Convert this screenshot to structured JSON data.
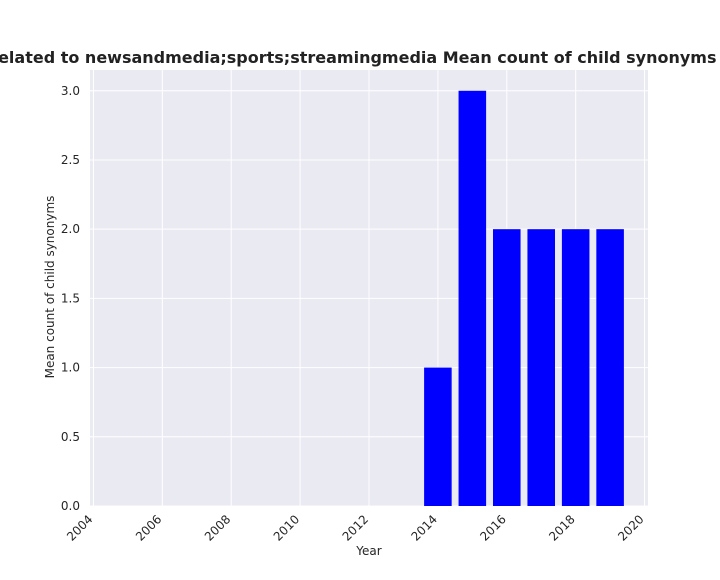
{
  "chart_data": {
    "type": "bar",
    "title": "s are related to newsandmedia;sports;streamingmedia Mean count of child synonyms in privac",
    "xlabel": "Year",
    "ylabel": "Mean count of child synonyms",
    "x": [
      2014,
      2015,
      2016,
      2017,
      2018,
      2019
    ],
    "values": [
      1.0,
      3.0,
      2.0,
      2.0,
      2.0,
      2.0
    ],
    "xlim": [
      2003.9,
      2020.1
    ],
    "ylim": [
      0,
      3.15
    ],
    "xticks": [
      2004,
      2006,
      2008,
      2010,
      2012,
      2014,
      2016,
      2018,
      2020
    ],
    "xtick_labels": [
      "2004",
      "2006",
      "2008",
      "2010",
      "2012",
      "2014",
      "2016",
      "2018",
      "2020"
    ],
    "yticks": [
      0.0,
      0.5,
      1.0,
      1.5,
      2.0,
      2.5,
      3.0
    ],
    "ytick_labels": [
      "0.0",
      "0.5",
      "1.0",
      "1.5",
      "2.0",
      "2.5",
      "3.0"
    ],
    "bar_color": "#0000ff",
    "background_color": "#eaeaf2",
    "grid": true
  }
}
